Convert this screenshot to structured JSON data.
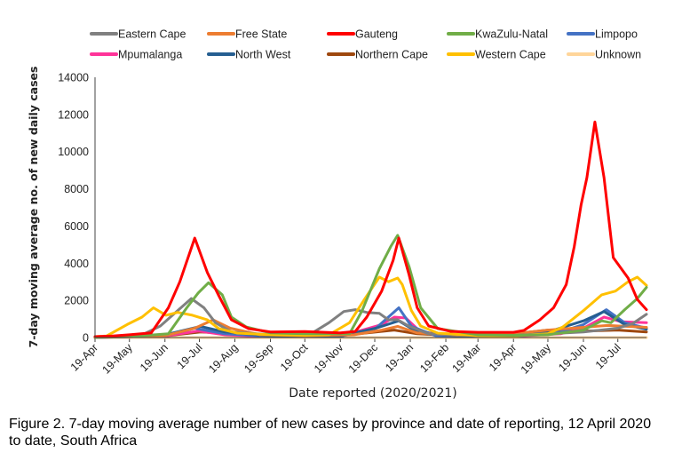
{
  "chart_data": {
    "type": "line",
    "title": "",
    "xlabel": "Date reported (2020/2021)",
    "ylabel": "7-day moving average no. of new daily cases",
    "xlim": [
      "2020-04-19",
      "2021-08-13"
    ],
    "ylim": [
      0,
      14000
    ],
    "yticks": [
      0,
      2000,
      4000,
      6000,
      8000,
      10000,
      12000,
      14000
    ],
    "xticks": [
      {
        "date": "2020-04-19",
        "label": "19-Apr"
      },
      {
        "date": "2020-05-19",
        "label": "19-May"
      },
      {
        "date": "2020-06-19",
        "label": "19-Jun"
      },
      {
        "date": "2020-07-19",
        "label": "19-Jul"
      },
      {
        "date": "2020-08-19",
        "label": "19-Aug"
      },
      {
        "date": "2020-09-19",
        "label": "19-Sep"
      },
      {
        "date": "2020-10-19",
        "label": "19-Oct"
      },
      {
        "date": "2020-11-19",
        "label": "19-Nov"
      },
      {
        "date": "2020-12-19",
        "label": "19-Dec"
      },
      {
        "date": "2021-01-19",
        "label": "19-Jan"
      },
      {
        "date": "2021-02-19",
        "label": "19-Feb"
      },
      {
        "date": "2021-03-19",
        "label": "19-Mar"
      },
      {
        "date": "2021-04-19",
        "label": "19-Apr"
      },
      {
        "date": "2021-05-19",
        "label": "19-May"
      },
      {
        "date": "2021-06-19",
        "label": "19-Jun"
      },
      {
        "date": "2021-07-19",
        "label": "19-Jul"
      }
    ],
    "grid": false,
    "legend_placement": "top",
    "series": [
      {
        "name": "Eastern Cape",
        "color": "#808080",
        "points": [
          [
            "2020-04-19",
            20
          ],
          [
            "2020-05-19",
            60
          ],
          [
            "2020-06-01",
            200
          ],
          [
            "2020-06-15",
            620
          ],
          [
            "2020-06-30",
            1450
          ],
          [
            "2020-07-12",
            2100
          ],
          [
            "2020-07-23",
            1600
          ],
          [
            "2020-08-02",
            800
          ],
          [
            "2020-08-16",
            300
          ],
          [
            "2020-09-19",
            150
          ],
          [
            "2020-10-19",
            200
          ],
          [
            "2020-10-27",
            300
          ],
          [
            "2020-11-09",
            800
          ],
          [
            "2020-11-22",
            1400
          ],
          [
            "2020-12-02",
            1500
          ],
          [
            "2020-12-12",
            1350
          ],
          [
            "2020-12-23",
            1300
          ],
          [
            "2020-12-31",
            950
          ],
          [
            "2021-01-08",
            960
          ],
          [
            "2021-01-18",
            600
          ],
          [
            "2021-02-04",
            200
          ],
          [
            "2021-03-19",
            100
          ],
          [
            "2021-04-19",
            120
          ],
          [
            "2021-05-19",
            200
          ],
          [
            "2021-06-19",
            300
          ],
          [
            "2021-07-19",
            500
          ],
          [
            "2021-08-01",
            750
          ],
          [
            "2021-08-13",
            1250
          ]
        ]
      },
      {
        "name": "Free State",
        "color": "#ED7D31",
        "points": [
          [
            "2020-04-19",
            5
          ],
          [
            "2020-06-19",
            100
          ],
          [
            "2020-07-15",
            500
          ],
          [
            "2020-07-31",
            950
          ],
          [
            "2020-08-15",
            500
          ],
          [
            "2020-09-10",
            150
          ],
          [
            "2020-10-19",
            100
          ],
          [
            "2020-12-01",
            150
          ],
          [
            "2020-12-25",
            400
          ],
          [
            "2021-01-08",
            600
          ],
          [
            "2021-01-25",
            250
          ],
          [
            "2021-03-01",
            120
          ],
          [
            "2021-04-19",
            200
          ],
          [
            "2021-05-19",
            400
          ],
          [
            "2021-06-19",
            550
          ],
          [
            "2021-07-10",
            650
          ],
          [
            "2021-08-13",
            550
          ]
        ]
      },
      {
        "name": "Gauteng",
        "color": "#FF0000",
        "points": [
          [
            "2020-04-19",
            50
          ],
          [
            "2020-05-04",
            80
          ],
          [
            "2020-05-19",
            150
          ],
          [
            "2020-06-07",
            250
          ],
          [
            "2020-06-22",
            1600
          ],
          [
            "2020-07-02",
            3000
          ],
          [
            "2020-07-15",
            5350
          ],
          [
            "2020-07-26",
            3500
          ],
          [
            "2020-08-05",
            2250
          ],
          [
            "2020-08-16",
            950
          ],
          [
            "2020-08-31",
            480
          ],
          [
            "2020-09-19",
            300
          ],
          [
            "2020-10-19",
            320
          ],
          [
            "2020-11-19",
            250
          ],
          [
            "2020-12-02",
            330
          ],
          [
            "2020-12-12",
            1100
          ],
          [
            "2020-12-25",
            2500
          ],
          [
            "2021-01-04",
            4150
          ],
          [
            "2021-01-09",
            5350
          ],
          [
            "2021-01-18",
            3350
          ],
          [
            "2021-01-25",
            1600
          ],
          [
            "2021-02-04",
            620
          ],
          [
            "2021-02-23",
            330
          ],
          [
            "2021-03-19",
            280
          ],
          [
            "2021-04-19",
            280
          ],
          [
            "2021-04-28",
            380
          ],
          [
            "2021-05-12",
            950
          ],
          [
            "2021-05-24",
            1600
          ],
          [
            "2021-06-04",
            2850
          ],
          [
            "2021-06-11",
            4900
          ],
          [
            "2021-06-17",
            7150
          ],
          [
            "2021-06-22",
            8600
          ],
          [
            "2021-06-29",
            11600
          ],
          [
            "2021-07-07",
            8600
          ],
          [
            "2021-07-15",
            4300
          ],
          [
            "2021-07-28",
            3200
          ],
          [
            "2021-08-05",
            2050
          ],
          [
            "2021-08-13",
            1500
          ]
        ]
      },
      {
        "name": "KwaZulu-Natal",
        "color": "#70AD47",
        "points": [
          [
            "2020-04-19",
            10
          ],
          [
            "2020-05-19",
            50
          ],
          [
            "2020-06-22",
            200
          ],
          [
            "2020-07-08",
            1600
          ],
          [
            "2020-07-18",
            2400
          ],
          [
            "2020-07-27",
            2950
          ],
          [
            "2020-08-08",
            2300
          ],
          [
            "2020-08-16",
            1100
          ],
          [
            "2020-08-29",
            570
          ],
          [
            "2020-09-19",
            250
          ],
          [
            "2020-10-19",
            200
          ],
          [
            "2020-11-27",
            200
          ],
          [
            "2020-12-08",
            1450
          ],
          [
            "2020-12-23",
            3700
          ],
          [
            "2021-01-02",
            4900
          ],
          [
            "2021-01-08",
            5500
          ],
          [
            "2021-01-18",
            3800
          ],
          [
            "2021-01-28",
            1600
          ],
          [
            "2021-02-12",
            480
          ],
          [
            "2021-03-19",
            150
          ],
          [
            "2021-04-19",
            120
          ],
          [
            "2021-05-19",
            150
          ],
          [
            "2021-06-19",
            400
          ],
          [
            "2021-07-05",
            900
          ],
          [
            "2021-07-13",
            800
          ],
          [
            "2021-07-25",
            1500
          ],
          [
            "2021-08-05",
            2100
          ],
          [
            "2021-08-13",
            2700
          ]
        ]
      },
      {
        "name": "Limpopo",
        "color": "#4472C4",
        "points": [
          [
            "2020-04-19",
            5
          ],
          [
            "2020-06-19",
            100
          ],
          [
            "2020-07-15",
            500
          ],
          [
            "2020-08-10",
            200
          ],
          [
            "2020-09-19",
            60
          ],
          [
            "2020-11-19",
            60
          ],
          [
            "2020-12-20",
            500
          ],
          [
            "2021-01-09",
            1600
          ],
          [
            "2021-01-20",
            600
          ],
          [
            "2021-02-10",
            100
          ],
          [
            "2021-04-19",
            60
          ],
          [
            "2021-05-30",
            300
          ],
          [
            "2021-06-19",
            700
          ],
          [
            "2021-07-09",
            1500
          ],
          [
            "2021-07-25",
            800
          ],
          [
            "2021-08-13",
            500
          ]
        ]
      },
      {
        "name": "Mpumalanga",
        "color": "#FF3399",
        "points": [
          [
            "2020-04-19",
            5
          ],
          [
            "2020-06-19",
            80
          ],
          [
            "2020-07-18",
            350
          ],
          [
            "2020-08-10",
            150
          ],
          [
            "2020-09-19",
            50
          ],
          [
            "2020-11-19",
            60
          ],
          [
            "2020-12-25",
            700
          ],
          [
            "2021-01-05",
            1100
          ],
          [
            "2021-01-15",
            1050
          ],
          [
            "2021-01-28",
            300
          ],
          [
            "2021-03-01",
            80
          ],
          [
            "2021-04-19",
            60
          ],
          [
            "2021-05-30",
            200
          ],
          [
            "2021-06-19",
            500
          ],
          [
            "2021-07-07",
            1100
          ],
          [
            "2021-07-22",
            850
          ],
          [
            "2021-08-13",
            800
          ]
        ]
      },
      {
        "name": "North West",
        "color": "#255E91",
        "points": [
          [
            "2020-04-19",
            5
          ],
          [
            "2020-06-19",
            150
          ],
          [
            "2020-07-20",
            600
          ],
          [
            "2020-08-10",
            300
          ],
          [
            "2020-09-19",
            80
          ],
          [
            "2020-11-19",
            80
          ],
          [
            "2020-12-20",
            500
          ],
          [
            "2021-01-09",
            900
          ],
          [
            "2021-01-25",
            300
          ],
          [
            "2021-03-01",
            80
          ],
          [
            "2021-04-19",
            80
          ],
          [
            "2021-05-19",
            300
          ],
          [
            "2021-06-19",
            900
          ],
          [
            "2021-07-07",
            1400
          ],
          [
            "2021-07-25",
            700
          ],
          [
            "2021-08-13",
            450
          ]
        ]
      },
      {
        "name": "Northern Cape",
        "color": "#9E480E",
        "points": [
          [
            "2020-04-19",
            5
          ],
          [
            "2020-06-19",
            80
          ],
          [
            "2020-07-20",
            300
          ],
          [
            "2020-08-20",
            200
          ],
          [
            "2020-09-19",
            120
          ],
          [
            "2020-11-19",
            100
          ],
          [
            "2020-12-20",
            300
          ],
          [
            "2021-01-05",
            400
          ],
          [
            "2021-01-25",
            200
          ],
          [
            "2021-03-01",
            100
          ],
          [
            "2021-04-19",
            200
          ],
          [
            "2021-05-19",
            400
          ],
          [
            "2021-06-19",
            350
          ],
          [
            "2021-07-19",
            400
          ],
          [
            "2021-08-13",
            300
          ]
        ]
      },
      {
        "name": "Western Cape",
        "color": "#FFC000",
        "points": [
          [
            "2020-04-19",
            50
          ],
          [
            "2020-04-29",
            80
          ],
          [
            "2020-05-17",
            700
          ],
          [
            "2020-05-30",
            1100
          ],
          [
            "2020-06-09",
            1600
          ],
          [
            "2020-06-20",
            1200
          ],
          [
            "2020-06-30",
            1350
          ],
          [
            "2020-07-13",
            1200
          ],
          [
            "2020-07-26",
            950
          ],
          [
            "2020-08-05",
            480
          ],
          [
            "2020-08-21",
            240
          ],
          [
            "2020-09-19",
            150
          ],
          [
            "2020-10-19",
            120
          ],
          [
            "2020-11-09",
            150
          ],
          [
            "2020-11-27",
            800
          ],
          [
            "2020-12-10",
            2050
          ],
          [
            "2020-12-23",
            3250
          ],
          [
            "2020-12-31",
            3000
          ],
          [
            "2021-01-08",
            3200
          ],
          [
            "2021-01-12",
            2850
          ],
          [
            "2021-01-20",
            1450
          ],
          [
            "2021-01-28",
            620
          ],
          [
            "2021-02-12",
            240
          ],
          [
            "2021-03-19",
            100
          ],
          [
            "2021-04-19",
            80
          ],
          [
            "2021-05-19",
            200
          ],
          [
            "2021-06-01",
            570
          ],
          [
            "2021-06-19",
            1450
          ],
          [
            "2021-07-05",
            2300
          ],
          [
            "2021-07-17",
            2500
          ],
          [
            "2021-07-28",
            3000
          ],
          [
            "2021-08-05",
            3250
          ],
          [
            "2021-08-13",
            2800
          ]
        ]
      },
      {
        "name": "Unknown",
        "color": "#FFD59A",
        "points": [
          [
            "2020-04-19",
            0
          ],
          [
            "2021-08-13",
            0
          ]
        ]
      }
    ]
  },
  "caption": "Figure 2. 7-day moving average number of new cases by province and date of reporting, 12 April 2020 to date, South Africa"
}
